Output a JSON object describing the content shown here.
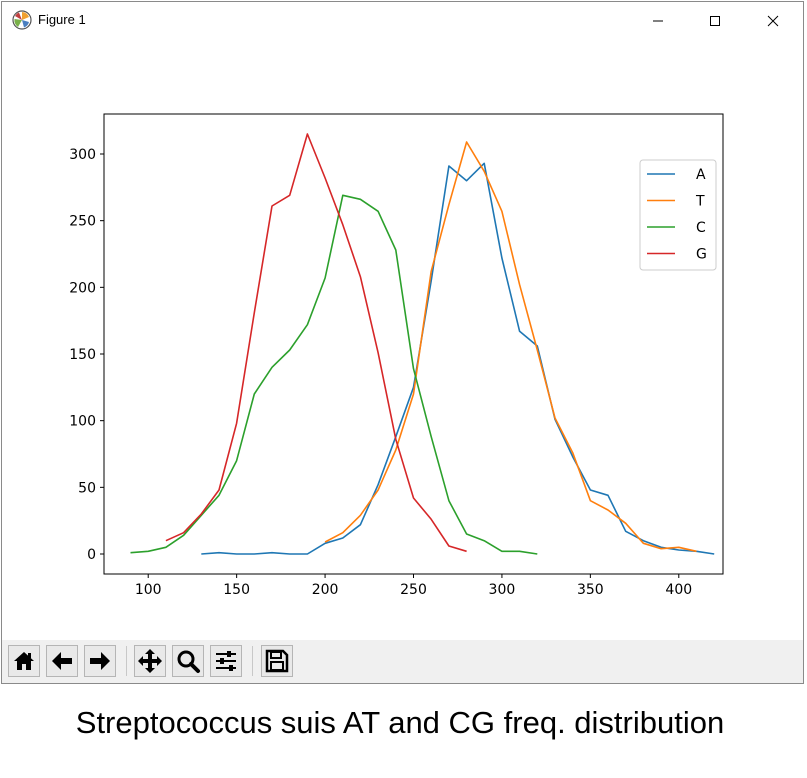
{
  "window": {
    "title": "Figure 1"
  },
  "toolbar": {
    "icons": [
      "home-icon",
      "back-arrow-icon",
      "forward-arrow-icon",
      "pan-icon",
      "zoom-icon",
      "configure-subplots-icon",
      "save-icon"
    ]
  },
  "caption": "Streptococcus suis AT and CG freq. distribution",
  "chart_data": {
    "type": "line",
    "title": "",
    "xlabel": "",
    "ylabel": "",
    "xlim": [
      75,
      425
    ],
    "ylim": [
      -15,
      330
    ],
    "xticks": [
      100,
      150,
      200,
      250,
      300,
      350,
      400
    ],
    "yticks": [
      0,
      50,
      100,
      150,
      200,
      250,
      300
    ],
    "grid": false,
    "legend_position": "top-right",
    "series": [
      {
        "name": "A",
        "color": "#1f77b4",
        "x": [
          130,
          140,
          150,
          160,
          170,
          180,
          190,
          200,
          210,
          220,
          230,
          240,
          250,
          260,
          270,
          280,
          290,
          300,
          310,
          320,
          330,
          340,
          350,
          360,
          370,
          380,
          390,
          400,
          410,
          420
        ],
        "y": [
          0,
          1,
          0,
          0,
          1,
          0,
          0,
          8,
          12,
          22,
          52,
          88,
          125,
          205,
          291,
          280,
          293,
          222,
          167,
          156,
          101,
          73,
          48,
          44,
          17,
          10,
          5,
          3,
          2,
          0
        ]
      },
      {
        "name": "T",
        "color": "#ff7f0e",
        "x": [
          200,
          210,
          220,
          230,
          240,
          250,
          260,
          270,
          280,
          290,
          300,
          310,
          320,
          330,
          340,
          350,
          360,
          370,
          380,
          390,
          400,
          410
        ],
        "y": [
          9,
          16,
          29,
          48,
          78,
          120,
          212,
          262,
          309,
          287,
          257,
          202,
          153,
          102,
          76,
          40,
          33,
          23,
          8,
          4,
          5,
          2
        ]
      },
      {
        "name": "C",
        "color": "#2ca02c",
        "x": [
          90,
          100,
          110,
          120,
          130,
          140,
          150,
          160,
          170,
          180,
          190,
          200,
          210,
          220,
          230,
          240,
          250,
          260,
          270,
          280,
          290,
          300,
          310,
          320
        ],
        "y": [
          1,
          2,
          5,
          14,
          29,
          44,
          70,
          120,
          140,
          153,
          172,
          207,
          269,
          266,
          257,
          228,
          139,
          88,
          40,
          15,
          10,
          2,
          2,
          0
        ]
      },
      {
        "name": "G",
        "color": "#d62728",
        "x": [
          110,
          120,
          130,
          140,
          150,
          160,
          170,
          180,
          190,
          200,
          210,
          220,
          230,
          240,
          250,
          260,
          270,
          280
        ],
        "y": [
          10,
          16,
          30,
          48,
          98,
          181,
          261,
          269,
          315,
          282,
          247,
          208,
          151,
          86,
          42,
          26,
          6,
          2
        ]
      }
    ]
  }
}
